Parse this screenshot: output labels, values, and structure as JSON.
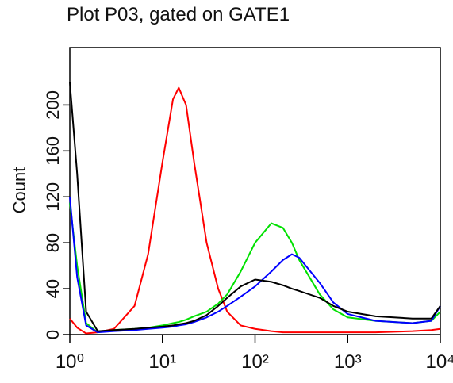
{
  "chart_data": {
    "type": "line",
    "title": "Plot P03, gated on GATE1",
    "y_label": "Count",
    "xscale": "log",
    "xlim": [
      1,
      10000
    ],
    "xticks": [
      {
        "value": 1,
        "label": "10⁰"
      },
      {
        "value": 10,
        "label": "10¹"
      },
      {
        "value": 100,
        "label": "10²"
      },
      {
        "value": 1000,
        "label": "10³"
      },
      {
        "value": 10000,
        "label": "10⁴"
      }
    ],
    "ylim": [
      0,
      250
    ],
    "yticks": [
      0,
      40,
      80,
      120,
      160,
      200
    ],
    "x": [
      1,
      1.2,
      1.5,
      2,
      3,
      5,
      7,
      10,
      13,
      15,
      18,
      22,
      30,
      40,
      50,
      70,
      100,
      150,
      200,
      250,
      300,
      500,
      700,
      1000,
      2000,
      5000,
      8000,
      10000
    ],
    "series": [
      {
        "name": "red",
        "color": "#ff0000",
        "values": [
          14,
          6,
          1,
          2,
          5,
          25,
          70,
          150,
          205,
          215,
          200,
          150,
          80,
          40,
          20,
          8,
          5,
          3,
          2,
          2,
          2,
          2,
          2,
          2,
          2,
          3,
          4,
          5
        ]
      },
      {
        "name": "green",
        "color": "#00e000",
        "values": [
          115,
          60,
          10,
          2,
          4,
          5,
          6,
          8,
          10,
          11,
          13,
          16,
          20,
          27,
          35,
          55,
          80,
          97,
          93,
          80,
          65,
          35,
          22,
          15,
          12,
          10,
          12,
          20
        ]
      },
      {
        "name": "blue",
        "color": "#0000ff",
        "values": [
          120,
          50,
          8,
          2,
          3,
          4,
          5,
          6,
          7,
          8,
          9,
          11,
          15,
          20,
          25,
          33,
          42,
          55,
          65,
          70,
          67,
          45,
          28,
          18,
          12,
          10,
          12,
          25
        ]
      },
      {
        "name": "black",
        "color": "#000000",
        "values": [
          220,
          140,
          20,
          3,
          4,
          5,
          6,
          7,
          8,
          9,
          10,
          12,
          17,
          25,
          32,
          42,
          48,
          46,
          43,
          40,
          38,
          32,
          25,
          20,
          16,
          14,
          14,
          25
        ]
      }
    ]
  }
}
